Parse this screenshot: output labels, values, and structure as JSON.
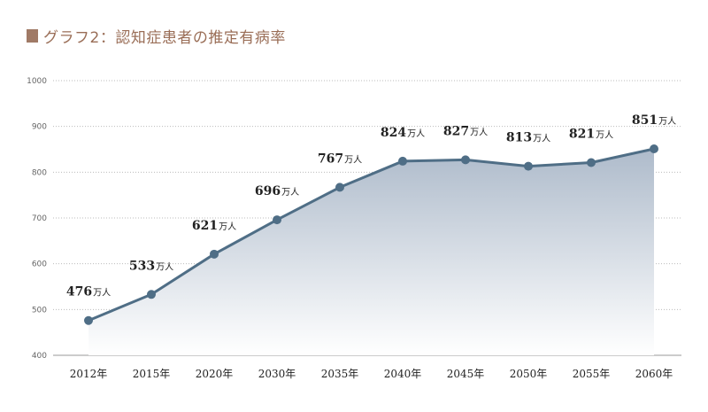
{
  "title": "グラフ2：認知症患者の推定有病率",
  "colors": {
    "title": "#9a6e57",
    "marker": "#a07a66",
    "line": "#4f6e86",
    "grid": "#bbbbbb",
    "area_top": "#aebbcb"
  },
  "chart_data": {
    "type": "area",
    "title": "グラフ2：認知症患者の推定有病率",
    "categories": [
      "2012年",
      "2015年",
      "2020年",
      "2030年",
      "2035年",
      "2040年",
      "2045年",
      "2050年",
      "2055年",
      "2060年"
    ],
    "series": [
      {
        "values": [
          476,
          533,
          621,
          696,
          767,
          824,
          827,
          813,
          821,
          851
        ],
        "labels": [
          "476",
          "533",
          "621",
          "696",
          "767",
          "824",
          "827",
          "813",
          "821",
          "851"
        ]
      }
    ],
    "unit_label": "万人",
    "yticks": [
      "1000",
      "900",
      "800",
      "700",
      "600",
      "500",
      "400"
    ],
    "ylim": [
      400,
      1000
    ],
    "grid": true,
    "legend": "none"
  }
}
